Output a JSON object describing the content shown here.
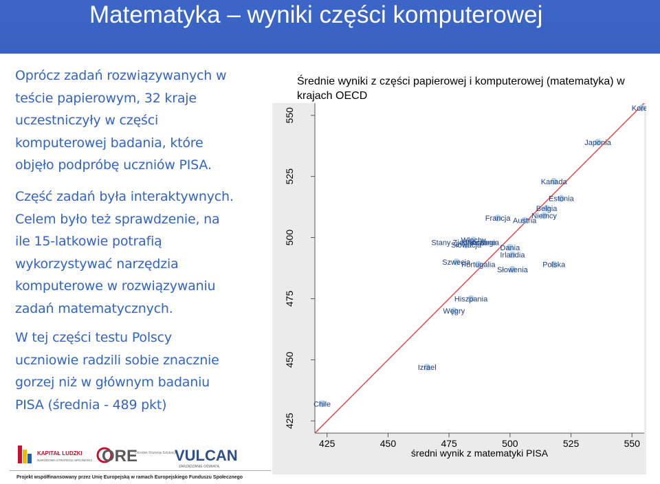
{
  "slide": {
    "title": "Matematyka – wyniki części komputerowej",
    "paragraphs": [
      [
        "Oprócz zadań rozwiązywanych w",
        "teście papierowym, 32 kraje",
        "uczestniczyły w części",
        "komputerowej badania, które",
        "objęło podpróbę uczniów PISA."
      ],
      [
        "Część zadań była interaktywnych.",
        "Celem było też sprawdzenie, na",
        "ile 15-latkowie potrafią",
        "wykorzystywać narzędzia",
        "komputerowe w rozwiązywaniu",
        "zadań matematycznych."
      ],
      [
        "W tej części testu Polscy",
        "uczniowie radzili sobie znacznie",
        "gorzej niż w głównym badaniu",
        "PISA (średnia - 489 pkt)"
      ]
    ]
  },
  "footer": {
    "logos": [
      "KAPITAŁ LUDZKI",
      "ORE",
      "VULCAN"
    ],
    "logo_sublines": [
      "NARODOWA STRATEGIA SPÓJNOŚCI",
      "Ośrodek Rozwoju Edukacji",
      "ZARZĄDZANIE OŚWIATĄ"
    ],
    "note": "Projekt współfinansowany przez Unię Europejską w ramach Europejskiego Funduszu Społecznego"
  },
  "chart_data": {
    "type": "scatter",
    "title": "Średnie wyniki z części papierowej i komputerowej (matematyka) w krajach OECD",
    "xlabel": "średni wynik z matematyki PISA",
    "ylabel": "",
    "xlim": [
      420,
      555
    ],
    "ylim": [
      420,
      555
    ],
    "xticks": [
      425,
      450,
      475,
      500,
      525,
      550
    ],
    "yticks": [
      425,
      450,
      475,
      500,
      525,
      550
    ],
    "grid": false,
    "diagonal": true,
    "colors": {
      "point": "#a9cde8",
      "line": "#d95757",
      "plot_bg": "#eaeaea"
    },
    "points": [
      {
        "label": "Korea",
        "x": 554,
        "y": 553
      },
      {
        "label": "Japonia",
        "x": 536,
        "y": 539
      },
      {
        "label": "Kanada",
        "x": 518,
        "y": 523
      },
      {
        "label": "Estonia",
        "x": 521,
        "y": 516
      },
      {
        "label": "Belgia",
        "x": 515,
        "y": 512
      },
      {
        "label": "Niemcy",
        "x": 514,
        "y": 509
      },
      {
        "label": "Francja",
        "x": 495,
        "y": 508
      },
      {
        "label": "Austria",
        "x": 506,
        "y": 507
      },
      {
        "label": "Stany Zjednoczone",
        "x": 481,
        "y": 498
      },
      {
        "label": "Włochy",
        "x": 485,
        "y": 499
      },
      {
        "label": "Norwegia",
        "x": 489,
        "y": 498
      },
      {
        "label": "Słowacja",
        "x": 482,
        "y": 497
      },
      {
        "label": "Dania",
        "x": 500,
        "y": 496
      },
      {
        "label": "Irlandia",
        "x": 501,
        "y": 493
      },
      {
        "label": "Szwecja",
        "x": 478,
        "y": 490
      },
      {
        "label": "Portugalia",
        "x": 487,
        "y": 489
      },
      {
        "label": "Polska",
        "x": 518,
        "y": 489
      },
      {
        "label": "Słowenia",
        "x": 501,
        "y": 487
      },
      {
        "label": "Hiszpania",
        "x": 484,
        "y": 475
      },
      {
        "label": "Węgry",
        "x": 477,
        "y": 470
      },
      {
        "label": "Izrael",
        "x": 466,
        "y": 447
      },
      {
        "label": "Chile",
        "x": 423,
        "y": 432
      }
    ]
  }
}
